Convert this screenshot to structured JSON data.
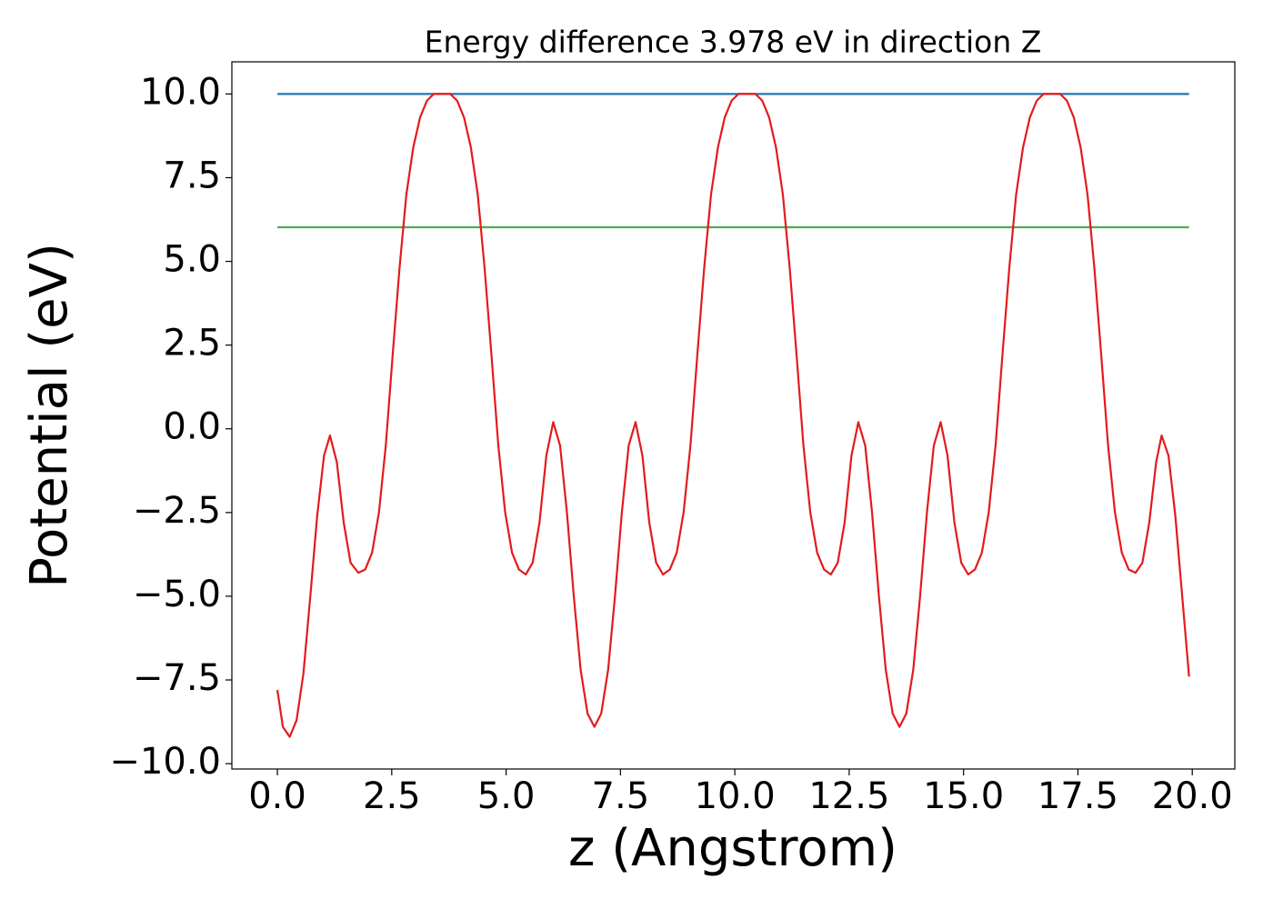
{
  "chart_data": {
    "type": "line",
    "title": "Energy difference 3.978 eV in direction Z",
    "x_label": "z (Angstrom)",
    "y_label": "Potential (eV)",
    "xlim": [
      -0.995,
      20.93
    ],
    "ylim": [
      -10.16,
      10.96
    ],
    "xticks": [
      {
        "value": 0,
        "label": "0.0"
      },
      2.5,
      {
        "value": 5,
        "label": "5.0"
      },
      7.5,
      {
        "value": 10,
        "label": "10.0"
      },
      12.5,
      {
        "value": 15,
        "label": "15.0"
      },
      17.5,
      {
        "value": 20,
        "label": "20.0"
      }
    ],
    "yticks": [
      {
        "value": -10,
        "label": "−10.0"
      },
      {
        "value": -7.5,
        "label": "−7.5"
      },
      {
        "value": -5,
        "label": "−5.0"
      },
      {
        "value": -2.5,
        "label": "−2.5"
      },
      {
        "value": 0,
        "label": "0.0"
      },
      2.5,
      {
        "value": 5,
        "label": "5.0"
      },
      7.5,
      {
        "value": 10,
        "label": "10.0"
      }
    ],
    "grid": false,
    "series": [
      {
        "color": "#1f77b4",
        "x": [
          0,
          19.93
        ],
        "values": [
          10.0,
          10.0
        ]
      },
      {
        "color": "#4daf4a",
        "x": [
          0,
          19.93
        ],
        "values": [
          6.02,
          6.02
        ]
      },
      {
        "color": "#e41a1c",
        "x": [
          0.0,
          0.12,
          0.27,
          0.42,
          0.57,
          0.72,
          0.87,
          1.02,
          1.15,
          1.3,
          1.45,
          1.6,
          1.77,
          1.92,
          2.07,
          2.22,
          2.37,
          2.52,
          2.67,
          2.82,
          2.97,
          3.12,
          3.27,
          3.42,
          3.6,
          3.78,
          3.93,
          4.08,
          4.23,
          4.38,
          4.53,
          4.68,
          4.83,
          4.98,
          5.13,
          5.28,
          5.43,
          5.58,
          5.73,
          5.88,
          6.03,
          6.18,
          6.33,
          6.48,
          6.63,
          6.78,
          6.93,
          7.08,
          7.23,
          7.38,
          7.53,
          7.68,
          7.83,
          7.98,
          8.13,
          8.28,
          8.43,
          8.58,
          8.73,
          8.88,
          9.03,
          9.18,
          9.33,
          9.48,
          9.63,
          9.78,
          9.93,
          10.08,
          10.27,
          10.45,
          10.6,
          10.75,
          10.9,
          11.05,
          11.2,
          11.35,
          11.5,
          11.65,
          11.8,
          11.95,
          12.1,
          12.25,
          12.4,
          12.55,
          12.7,
          12.85,
          13.0,
          13.15,
          13.3,
          13.45,
          13.6,
          13.75,
          13.9,
          14.05,
          14.2,
          14.35,
          14.5,
          14.65,
          14.8,
          14.95,
          15.1,
          15.25,
          15.4,
          15.55,
          15.7,
          15.85,
          16.0,
          16.15,
          16.3,
          16.45,
          16.6,
          16.75,
          16.93,
          17.11,
          17.26,
          17.41,
          17.56,
          17.71,
          17.86,
          18.01,
          18.16,
          18.31,
          18.46,
          18.61,
          18.76,
          18.91,
          19.06,
          19.21,
          19.33,
          19.48,
          19.63,
          19.78,
          19.93
        ],
        "values": [
          -7.8,
          -8.9,
          -9.2,
          -8.7,
          -7.3,
          -5.0,
          -2.6,
          -0.8,
          -0.2,
          -1.0,
          -2.8,
          -4.0,
          -4.3,
          -4.2,
          -3.7,
          -2.5,
          -0.5,
          2.2,
          4.8,
          7.0,
          8.4,
          9.3,
          9.8,
          10.0,
          10.0,
          10.0,
          9.8,
          9.3,
          8.4,
          7.0,
          4.8,
          2.2,
          -0.5,
          -2.5,
          -3.7,
          -4.2,
          -4.35,
          -4.0,
          -2.8,
          -0.8,
          0.2,
          -0.5,
          -2.5,
          -5.0,
          -7.2,
          -8.5,
          -8.9,
          -8.5,
          -7.2,
          -5.0,
          -2.5,
          -0.5,
          0.2,
          -0.8,
          -2.8,
          -4.0,
          -4.35,
          -4.2,
          -3.7,
          -2.5,
          -0.5,
          2.2,
          4.8,
          7.0,
          8.4,
          9.3,
          9.8,
          10.0,
          10.0,
          10.0,
          9.8,
          9.3,
          8.4,
          7.0,
          4.8,
          2.2,
          -0.5,
          -2.5,
          -3.7,
          -4.2,
          -4.35,
          -4.0,
          -2.8,
          -0.8,
          0.2,
          -0.5,
          -2.5,
          -5.0,
          -7.2,
          -8.5,
          -8.9,
          -8.5,
          -7.2,
          -5.0,
          -2.5,
          -0.5,
          0.2,
          -0.8,
          -2.8,
          -4.0,
          -4.35,
          -4.2,
          -3.7,
          -2.5,
          -0.5,
          2.2,
          4.8,
          7.0,
          8.4,
          9.3,
          9.8,
          10.0,
          10.0,
          10.0,
          9.8,
          9.3,
          8.4,
          7.0,
          4.8,
          2.2,
          -0.5,
          -2.5,
          -3.7,
          -4.2,
          -4.3,
          -4.0,
          -2.8,
          -1.0,
          -0.2,
          -0.8,
          -2.6,
          -5.0,
          -7.4
        ]
      }
    ]
  }
}
